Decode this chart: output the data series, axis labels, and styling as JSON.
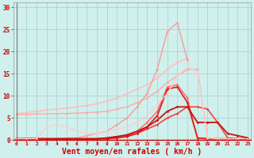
{
  "background_color": "#cff0ec",
  "grid_color": "#aacccc",
  "xlabel": "Vent moyen/en rafales ( km/h )",
  "yticks": [
    0,
    5,
    10,
    15,
    20,
    25,
    30
  ],
  "xticks": [
    0,
    1,
    2,
    3,
    4,
    5,
    6,
    7,
    8,
    9,
    10,
    11,
    12,
    13,
    14,
    15,
    16,
    17,
    18,
    19,
    20,
    21,
    22,
    23
  ],
  "xlim": [
    -0.3,
    23.3
  ],
  "ylim": [
    0,
    31
  ],
  "series": [
    {
      "x": [
        0,
        1,
        2,
        3,
        4,
        5,
        6,
        7,
        8,
        9,
        10,
        11,
        12,
        13,
        14,
        15,
        16,
        17
      ],
      "y": [
        6.0,
        6.2,
        6.5,
        6.8,
        7.0,
        7.2,
        7.5,
        7.8,
        8.2,
        8.8,
        9.5,
        10.5,
        11.5,
        12.5,
        14.0,
        16.0,
        17.5,
        18.5
      ],
      "color": "#ffbbbb",
      "linewidth": 1.0,
      "marker": "D",
      "markersize": 1.8
    },
    {
      "x": [
        0,
        1,
        2,
        3,
        4,
        5,
        6,
        7,
        8,
        9,
        10,
        11,
        12,
        13,
        14,
        15,
        16,
        17,
        18,
        19
      ],
      "y": [
        5.8,
        5.8,
        5.9,
        5.9,
        6.0,
        6.0,
        6.1,
        6.2,
        6.3,
        6.5,
        7.0,
        7.5,
        8.5,
        9.5,
        11.0,
        13.0,
        14.5,
        16.0,
        16.0,
        0.5
      ],
      "color": "#ffaaaa",
      "linewidth": 1.0,
      "marker": "D",
      "markersize": 1.8
    },
    {
      "x": [
        0,
        1,
        2,
        3,
        4,
        5,
        6,
        7,
        8,
        9,
        10,
        11,
        12,
        13,
        14,
        15,
        16,
        17
      ],
      "y": [
        0.3,
        0.3,
        0.3,
        0.3,
        0.3,
        0.5,
        0.5,
        1.0,
        1.5,
        2.0,
        3.5,
        5.0,
        7.5,
        10.5,
        16.0,
        24.5,
        26.5,
        18.0
      ],
      "color": "#ff9999",
      "linewidth": 1.0,
      "marker": "D",
      "markersize": 1.8
    },
    {
      "x": [
        0,
        1,
        2,
        3,
        4,
        5,
        6,
        7,
        8,
        9,
        10,
        11,
        12,
        13,
        14,
        15,
        16,
        17,
        18,
        19,
        20,
        21,
        22,
        23
      ],
      "y": [
        0.3,
        0.3,
        0.3,
        0.3,
        0.3,
        0.3,
        0.3,
        0.3,
        0.3,
        0.3,
        0.5,
        1.0,
        2.0,
        4.0,
        6.5,
        12.0,
        12.5,
        9.5,
        0.5,
        0.3,
        0.3,
        0.3,
        0.3,
        0.3
      ],
      "color": "#ff6666",
      "linewidth": 1.0,
      "marker": "D",
      "markersize": 1.8
    },
    {
      "x": [
        0,
        1,
        2,
        3,
        4,
        5,
        6,
        7,
        8,
        9,
        10,
        11,
        12,
        13,
        14,
        15,
        16,
        17,
        18,
        19,
        20,
        21,
        22,
        23
      ],
      "y": [
        0.3,
        0.3,
        0.3,
        0.3,
        0.3,
        0.3,
        0.3,
        0.3,
        0.3,
        0.5,
        0.8,
        1.0,
        1.5,
        2.5,
        3.5,
        5.0,
        6.0,
        7.5,
        7.5,
        7.0,
        4.0,
        0.5,
        0.3,
        0.3
      ],
      "color": "#ee4444",
      "linewidth": 1.2,
      "marker": "D",
      "markersize": 1.8
    },
    {
      "x": [
        0,
        1,
        2,
        3,
        4,
        5,
        6,
        7,
        8,
        9,
        10,
        11,
        12,
        13,
        14,
        15,
        16,
        17,
        18,
        19,
        20,
        21,
        22,
        23
      ],
      "y": [
        0.3,
        0.3,
        0.3,
        0.3,
        0.3,
        0.3,
        0.3,
        0.3,
        0.3,
        0.3,
        0.5,
        0.8,
        1.5,
        3.0,
        5.5,
        11.5,
        12.0,
        8.5,
        0.5,
        0.3,
        0.3,
        0.3,
        0.3,
        0.3
      ],
      "color": "#dd2222",
      "linewidth": 1.3,
      "marker": "D",
      "markersize": 1.8
    },
    {
      "x": [
        0,
        1,
        2,
        3,
        4,
        5,
        6,
        7,
        8,
        9,
        10,
        11,
        12,
        13,
        14,
        15,
        16,
        17,
        18,
        19,
        20,
        21,
        22,
        23
      ],
      "y": [
        0.3,
        0.3,
        0.3,
        0.3,
        0.3,
        0.3,
        0.3,
        0.3,
        0.3,
        0.5,
        0.8,
        1.2,
        2.0,
        3.0,
        4.5,
        6.5,
        7.5,
        7.5,
        4.0,
        4.0,
        4.0,
        1.5,
        1.0,
        0.5
      ],
      "color": "#cc1111",
      "linewidth": 1.3,
      "marker": "D",
      "markersize": 1.8
    },
    {
      "x": [
        0,
        1,
        2,
        3,
        4,
        5,
        6,
        7,
        8,
        9,
        10,
        11,
        12,
        13,
        14,
        15,
        16,
        17,
        18,
        19,
        20,
        21,
        22,
        23
      ],
      "y": [
        0.3,
        0.3,
        0.3,
        3.0,
        3.5,
        3.0,
        2.0,
        1.5,
        1.5,
        2.0,
        2.5,
        3.0,
        4.0,
        5.5,
        8.0,
        10.5,
        14.5,
        16.5,
        15.5,
        0.5,
        0.3,
        0.3,
        0.3,
        0.3
      ],
      "color": "#ffcccc",
      "linewidth": 1.0,
      "marker": "D",
      "markersize": 1.8
    }
  ]
}
